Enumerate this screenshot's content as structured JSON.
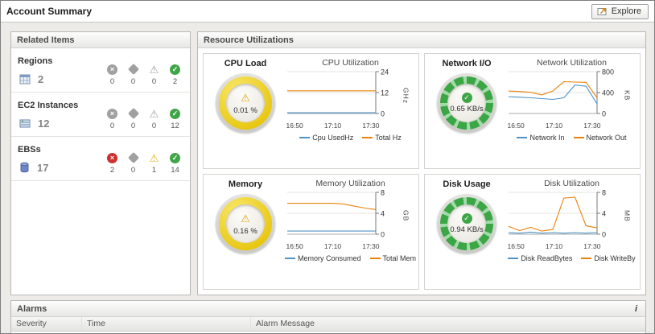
{
  "colors": {
    "status_gray": "#a0a0a0",
    "status_red": "#cc3030",
    "status_yellow": "#efae1e",
    "status_green": "#3fa546",
    "gauge_yellow": "#e8c712",
    "gauge_green": "#3aa644",
    "line_blue": "#4f93c8",
    "line_orange": "#e8820c"
  },
  "header": {
    "title": "Account Summary",
    "explore_label": "Explore"
  },
  "related_items": {
    "title": "Related Items",
    "rows": [
      {
        "name": "Regions",
        "count": "2",
        "statuses": [
          {
            "severity": "fatal",
            "count": "0"
          },
          {
            "severity": "critical",
            "count": "0"
          },
          {
            "severity": "warning",
            "count": "0"
          },
          {
            "severity": "normal",
            "count": "2"
          }
        ]
      },
      {
        "name": "EC2 Instances",
        "count": "12",
        "statuses": [
          {
            "severity": "fatal",
            "count": "0"
          },
          {
            "severity": "critical",
            "count": "0"
          },
          {
            "severity": "warning",
            "count": "0"
          },
          {
            "severity": "normal",
            "count": "12"
          }
        ]
      },
      {
        "name": "EBSs",
        "count": "17",
        "statuses": [
          {
            "severity": "fatal",
            "count": "2"
          },
          {
            "severity": "critical",
            "count": "0"
          },
          {
            "severity": "warning",
            "count": "1"
          },
          {
            "severity": "normal",
            "count": "14"
          }
        ]
      }
    ]
  },
  "resource_utilizations": {
    "title": "Resource Utilizations",
    "panels": [
      {
        "gauge_title": "CPU Load",
        "gauge_value": "0.01 %",
        "gauge_style": "yellow",
        "gauge_icon": "warning",
        "chart": {
          "type": "line",
          "title": "CPU Utilization",
          "ylabel": "GHz",
          "ylim": [
            0,
            24
          ],
          "yticks": [
            0,
            12,
            24
          ],
          "xticklabels": [
            "16:50",
            "17:10",
            "17:30"
          ],
          "series": [
            {
              "name": "Cpu UsedHz",
              "color": "#4f93c8",
              "values": [
                0.4,
                0.4,
                0.4,
                0.4,
                0.4,
                0.4,
                0.4,
                0.4,
                0.4
              ]
            },
            {
              "name": "Total Hz",
              "color": "#e8820c",
              "values": [
                13,
                13,
                13,
                13,
                13,
                13,
                13,
                13,
                13
              ]
            }
          ]
        }
      },
      {
        "gauge_title": "Network I/O",
        "gauge_value": "0.65 KB/s",
        "gauge_style": "green",
        "gauge_icon": "check",
        "chart": {
          "type": "line",
          "title": "Network Utilization",
          "ylabel": "KB",
          "ylim": [
            0,
            800
          ],
          "yticks": [
            0,
            400,
            800
          ],
          "xticklabels": [
            "16:50",
            "17:10",
            "17:30"
          ],
          "series": [
            {
              "name": "Network In",
              "color": "#4f93c8",
              "values": [
                320,
                310,
                300,
                285,
                270,
                300,
                545,
                520,
                185
              ]
            },
            {
              "name": "Network Out",
              "color": "#e8820c",
              "values": [
                430,
                420,
                405,
                355,
                430,
                610,
                600,
                595,
                300
              ]
            }
          ]
        }
      },
      {
        "gauge_title": "Memory",
        "gauge_value": "0.16 %",
        "gauge_style": "yellow",
        "gauge_icon": "warning",
        "chart": {
          "type": "line",
          "title": "Memory Utilization",
          "ylabel": "GB",
          "ylim": [
            0,
            8
          ],
          "yticks": [
            0,
            4,
            8
          ],
          "xticklabels": [
            "16:50",
            "17:10",
            "17:30"
          ],
          "series": [
            {
              "name": "Memory Consumed",
              "color": "#4f93c8",
              "values": [
                0.6,
                0.6,
                0.6,
                0.6,
                0.6,
                0.6,
                0.6,
                0.6,
                0.6
              ]
            },
            {
              "name": "Total Mem",
              "color": "#e8820c",
              "values": [
                5.9,
                5.9,
                5.9,
                5.9,
                5.9,
                5.8,
                5.4,
                5.0,
                4.7
              ]
            }
          ]
        }
      },
      {
        "gauge_title": "Disk Usage",
        "gauge_value": "0.94 KB/s",
        "gauge_style": "green",
        "gauge_icon": "check",
        "chart": {
          "type": "line",
          "title": "Disk Utilization",
          "ylabel": "MB",
          "ylim": [
            0,
            8
          ],
          "yticks": [
            0,
            4,
            8
          ],
          "xticklabels": [
            "16:50",
            "17:10",
            "17:30"
          ],
          "series": [
            {
              "name": "Disk ReadBytes",
              "color": "#4f93c8",
              "values": [
                0.3,
                0.2,
                0.4,
                0.2,
                0.3,
                0.2,
                0.3,
                0.2,
                0.3
              ]
            },
            {
              "name": "Disk WriteBy",
              "color": "#e8820c",
              "values": [
                1.5,
                0.7,
                1.3,
                0.6,
                0.9,
                6.9,
                7.1,
                1.6,
                1.2
              ]
            }
          ]
        }
      }
    ]
  },
  "alarms": {
    "title": "Alarms",
    "info_icon": "i",
    "columns": [
      "Severity",
      "Time",
      "Alarm Message"
    ]
  }
}
